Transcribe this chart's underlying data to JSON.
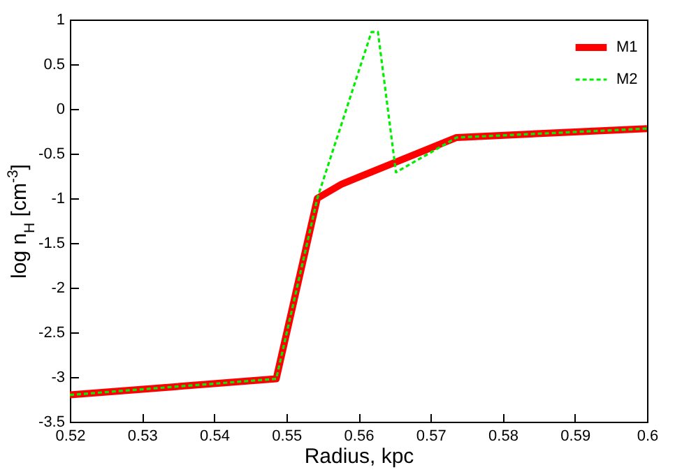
{
  "chart_data": {
    "type": "line",
    "xlabel": "Radius, kpc",
    "ylabel": "log n$_{H}$ [cm$^{-3}$]",
    "xlim": [
      0.52,
      0.6
    ],
    "xticks": [
      0.52,
      0.53,
      0.54,
      0.55,
      0.56,
      0.57,
      0.58,
      0.59,
      0.6
    ],
    "ylim": [
      -3.5,
      1
    ],
    "yticks": [
      -3.5,
      -3,
      -2.5,
      -2,
      -1.5,
      -1,
      -0.5,
      0,
      0.5,
      1
    ],
    "legend": "top right",
    "grid": false,
    "marker": "none",
    "series": [
      {
        "name": "M1",
        "color": "#ff0000",
        "line_style": "solid",
        "x": [
          0.52,
          0.5486,
          0.5543,
          0.5577,
          0.5736,
          0.6
        ],
        "values": [
          -3.2,
          -3.02,
          -1.0,
          -0.84,
          -0.32,
          -0.22
        ]
      },
      {
        "name": "M2",
        "color": "#00ee00",
        "line_style": "dashed",
        "x": [
          0.52,
          0.5486,
          0.5543,
          0.5618,
          0.5627,
          0.5652,
          0.5736,
          0.6
        ],
        "values": [
          -3.2,
          -3.02,
          -1.0,
          0.86,
          0.86,
          -0.71,
          -0.32,
          -0.22
        ]
      }
    ]
  }
}
